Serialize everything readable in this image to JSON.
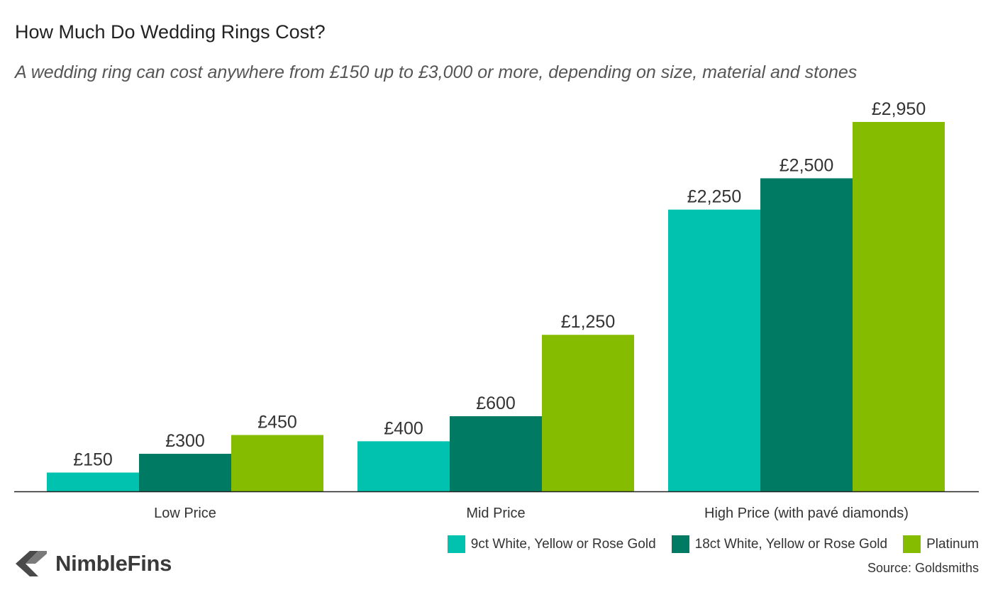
{
  "chart_data": {
    "type": "bar",
    "title": "How Much Do Wedding Rings Cost?",
    "subtitle": "A wedding ring can cost anywhere from £150 up to £3,000 or more, depending on size, material and stones",
    "categories": [
      "Low Price",
      "Mid Price",
      "High Price (with pavé diamonds)"
    ],
    "series": [
      {
        "name": "9ct White, Yellow or Rose Gold",
        "color": "#00c2ae",
        "values": [
          150,
          400,
          2250
        ],
        "labels": [
          "£150",
          "£400",
          "£2,250"
        ]
      },
      {
        "name": "18ct White, Yellow or Rose Gold",
        "color": "#007a63",
        "values": [
          300,
          600,
          2500
        ],
        "labels": [
          "£300",
          "£600",
          "£2,500"
        ]
      },
      {
        "name": "Platinum",
        "color": "#86bc00",
        "values": [
          450,
          1250,
          2950
        ],
        "labels": [
          "£450",
          "£1,250",
          "£2,950"
        ]
      }
    ],
    "ylim": [
      0,
      2950
    ],
    "grid": false,
    "xlabel": "",
    "ylabel": "",
    "legend_position": "bottom-right",
    "source": "Source: Goldsmiths"
  },
  "brand": {
    "name": "NimbleFins",
    "mark_color": "#4a4a4a"
  },
  "colors": {
    "axis": "#222222",
    "label": "#333333"
  }
}
